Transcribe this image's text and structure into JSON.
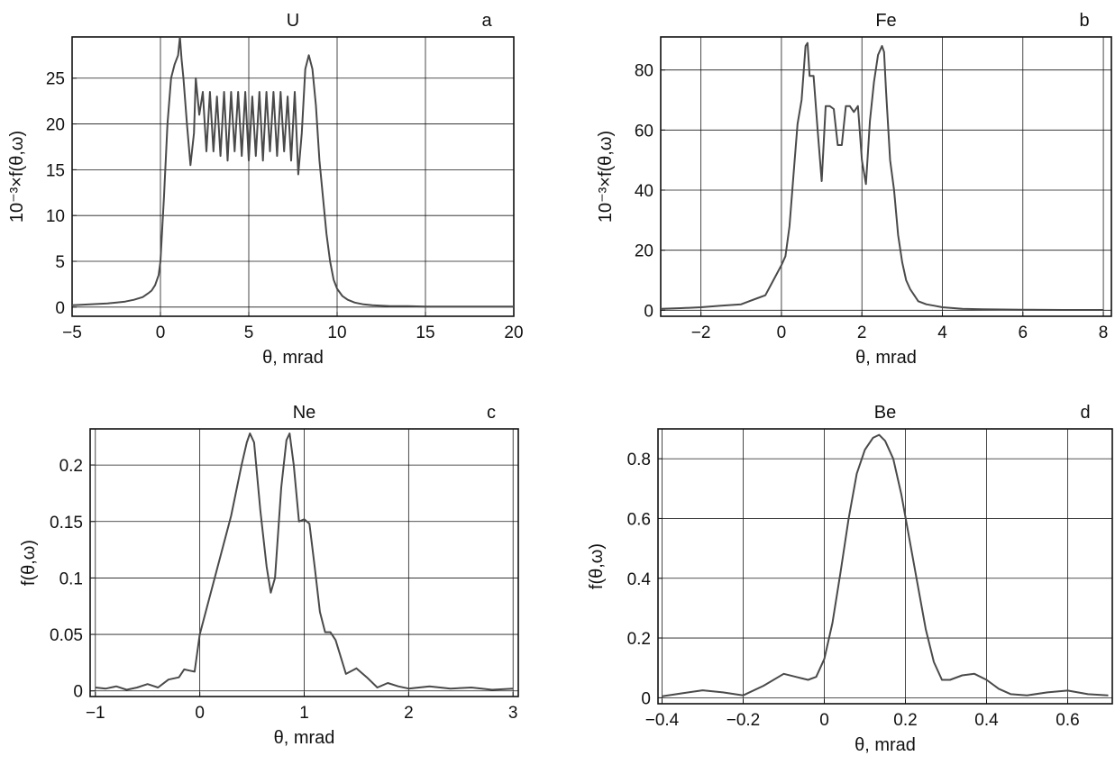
{
  "chart_data": [
    {
      "type": "line",
      "title": "U",
      "panel_label": "a",
      "xlabel": "θ, mrad",
      "ylabel": "10⁻³×f(θ,ω)",
      "xlim": [
        -5,
        20
      ],
      "ylim": [
        -1,
        29.5
      ],
      "xticks": [
        -5,
        0,
        5,
        10,
        15,
        20
      ],
      "yticks": [
        0,
        5,
        10,
        15,
        20,
        25
      ],
      "xtick_labels": [
        "−5",
        "0",
        "5",
        "10",
        "15",
        "20"
      ],
      "ytick_labels": [
        "0",
        "5",
        "10",
        "15",
        "20",
        "25"
      ],
      "grid": true,
      "x": [
        -5,
        -4,
        -3,
        -2,
        -1.5,
        -1,
        -0.7,
        -0.5,
        -0.3,
        -0.1,
        0,
        0.2,
        0.4,
        0.6,
        0.8,
        1,
        1.1,
        1.2,
        1.3,
        1.5,
        1.7,
        1.9,
        2.0,
        2.2,
        2.4,
        2.6,
        2.8,
        3.0,
        3.2,
        3.4,
        3.6,
        3.8,
        4.0,
        4.2,
        4.4,
        4.6,
        4.8,
        5.0,
        5.2,
        5.4,
        5.6,
        5.8,
        6.0,
        6.2,
        6.4,
        6.6,
        6.8,
        7.0,
        7.2,
        7.4,
        7.6,
        7.8,
        8.0,
        8.2,
        8.4,
        8.6,
        8.8,
        9.0,
        9.2,
        9.4,
        9.6,
        9.8,
        10.0,
        10.3,
        10.6,
        11,
        11.5,
        12,
        13,
        14,
        15,
        17,
        20
      ],
      "y": [
        0.2,
        0.3,
        0.4,
        0.6,
        0.8,
        1.1,
        1.5,
        1.8,
        2.4,
        3.5,
        5,
        12,
        20,
        25,
        26.5,
        27.5,
        29.5,
        27,
        25,
        20,
        15.5,
        19,
        25,
        21,
        23.5,
        17,
        23.5,
        17,
        23,
        16.5,
        23.5,
        16,
        23.5,
        17,
        23.5,
        16.5,
        23.5,
        16,
        23,
        16.5,
        23.5,
        16,
        23.5,
        17,
        23.5,
        16.5,
        23.5,
        17,
        23,
        16,
        23.5,
        14.5,
        19,
        26,
        27.5,
        26,
        22,
        16,
        12,
        8,
        5,
        3,
        2,
        1.2,
        0.8,
        0.5,
        0.3,
        0.2,
        0.1,
        0.1,
        0.05,
        0.05,
        0.05
      ]
    },
    {
      "type": "line",
      "title": "Fe",
      "panel_label": "b",
      "xlabel": "θ, mrad",
      "ylabel": "10⁻³×f(θ,ω)",
      "xlim": [
        -3,
        8.2
      ],
      "ylim": [
        -2,
        91
      ],
      "xticks": [
        -2,
        0,
        2,
        4,
        6,
        8
      ],
      "yticks": [
        0,
        20,
        40,
        60,
        80
      ],
      "xtick_labels": [
        "−2",
        "0",
        "2",
        "4",
        "6",
        "8"
      ],
      "ytick_labels": [
        "0",
        "20",
        "40",
        "60",
        "80"
      ],
      "grid": true,
      "x": [
        -3,
        -2.5,
        -2,
        -1.5,
        -1,
        -0.8,
        -0.6,
        -0.4,
        -0.2,
        0,
        0.1,
        0.2,
        0.3,
        0.4,
        0.5,
        0.6,
        0.65,
        0.7,
        0.8,
        0.9,
        1.0,
        1.1,
        1.2,
        1.3,
        1.4,
        1.5,
        1.6,
        1.7,
        1.8,
        1.9,
        2.0,
        2.1,
        2.2,
        2.3,
        2.4,
        2.5,
        2.55,
        2.6,
        2.7,
        2.8,
        2.9,
        3.0,
        3.1,
        3.2,
        3.3,
        3.4,
        3.6,
        3.8,
        4.0,
        4.5,
        5,
        6,
        7,
        8
      ],
      "y": [
        0.5,
        0.7,
        1,
        1.5,
        2,
        3,
        4,
        5,
        10,
        15,
        18,
        28,
        45,
        62,
        70,
        88,
        89,
        78,
        78,
        60,
        43,
        68,
        68,
        67,
        55,
        55,
        68,
        68,
        66,
        68,
        50,
        42,
        63,
        76,
        85,
        88,
        86,
        73,
        50,
        40,
        25,
        16,
        10,
        7,
        5,
        3,
        2,
        1.5,
        1,
        0.5,
        0.3,
        0.2,
        0.1,
        0.1
      ]
    },
    {
      "type": "line",
      "title": "Ne",
      "panel_label": "c",
      "xlabel": "θ, mrad",
      "ylabel": "f(θ,ω)",
      "xlim": [
        -1.05,
        3.05
      ],
      "ylim": [
        -0.005,
        0.232
      ],
      "xticks": [
        -1,
        0,
        1,
        2,
        3
      ],
      "yticks": [
        0,
        0.05,
        0.1,
        0.15,
        0.2
      ],
      "xtick_labels": [
        "−1",
        "0",
        "1",
        "2",
        "3"
      ],
      "ytick_labels": [
        "0",
        "0.05",
        "0.1",
        "0.15",
        "0.2"
      ],
      "grid": true,
      "x": [
        -1,
        -0.9,
        -0.8,
        -0.7,
        -0.6,
        -0.5,
        -0.4,
        -0.3,
        -0.2,
        -0.15,
        -0.1,
        -0.05,
        0,
        0.1,
        0.2,
        0.3,
        0.4,
        0.45,
        0.48,
        0.52,
        0.58,
        0.64,
        0.68,
        0.72,
        0.78,
        0.83,
        0.86,
        0.9,
        0.95,
        1.0,
        1.05,
        1.1,
        1.15,
        1.2,
        1.25,
        1.3,
        1.4,
        1.5,
        1.6,
        1.7,
        1.8,
        1.9,
        2.0,
        2.2,
        2.4,
        2.6,
        2.8,
        3.0
      ],
      "y": [
        0.003,
        0.002,
        0.004,
        0.001,
        0.003,
        0.006,
        0.003,
        0.01,
        0.012,
        0.019,
        0.018,
        0.017,
        0.05,
        0.085,
        0.12,
        0.155,
        0.2,
        0.22,
        0.228,
        0.22,
        0.16,
        0.11,
        0.087,
        0.1,
        0.18,
        0.222,
        0.228,
        0.2,
        0.15,
        0.152,
        0.148,
        0.11,
        0.07,
        0.052,
        0.052,
        0.045,
        0.015,
        0.02,
        0.012,
        0.003,
        0.007,
        0.004,
        0.002,
        0.004,
        0.002,
        0.003,
        0.001,
        0.002
      ],
      "x_note": ""
    },
    {
      "type": "line",
      "title": "Be",
      "panel_label": "d",
      "xlabel": "θ, mrad",
      "ylabel": "f(θ,ω)",
      "xlim": [
        -0.41,
        0.71
      ],
      "ylim": [
        -0.02,
        0.9
      ],
      "xticks": [
        -0.4,
        -0.2,
        0,
        0.2,
        0.4,
        0.6
      ],
      "yticks": [
        0,
        0.2,
        0.4,
        0.6,
        0.8
      ],
      "xtick_labels": [
        "−0.4",
        "−0.2",
        "0",
        "0.2",
        "0.4",
        "0.6"
      ],
      "ytick_labels": [
        "0",
        "0.2",
        "0.4",
        "0.6",
        "0.8"
      ],
      "grid": true,
      "x": [
        -0.4,
        -0.35,
        -0.3,
        -0.25,
        -0.2,
        -0.15,
        -0.1,
        -0.07,
        -0.04,
        -0.02,
        0,
        0.02,
        0.04,
        0.06,
        0.08,
        0.1,
        0.12,
        0.135,
        0.15,
        0.17,
        0.19,
        0.21,
        0.23,
        0.25,
        0.27,
        0.29,
        0.31,
        0.34,
        0.37,
        0.4,
        0.43,
        0.46,
        0.5,
        0.55,
        0.6,
        0.65,
        0.7
      ],
      "y": [
        0.005,
        0.015,
        0.025,
        0.018,
        0.008,
        0.04,
        0.08,
        0.07,
        0.06,
        0.07,
        0.13,
        0.25,
        0.42,
        0.6,
        0.75,
        0.83,
        0.87,
        0.88,
        0.86,
        0.8,
        0.68,
        0.53,
        0.38,
        0.23,
        0.12,
        0.06,
        0.06,
        0.075,
        0.08,
        0.06,
        0.03,
        0.012,
        0.008,
        0.018,
        0.024,
        0.012,
        0.008
      ]
    }
  ]
}
